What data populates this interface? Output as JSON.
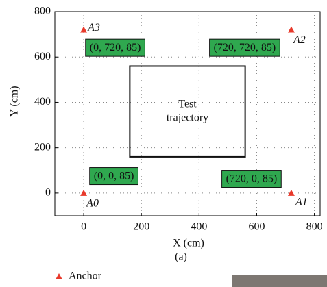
{
  "chart_data": {
    "type": "scatter",
    "xlabel": "X (cm)",
    "ylabel": "Y (cm)",
    "caption": "(a)",
    "xlim": [
      -100,
      820
    ],
    "ylim": [
      -100,
      800
    ],
    "xticks": [
      0,
      200,
      400,
      600,
      800
    ],
    "yticks": [
      0,
      200,
      400,
      600,
      800
    ],
    "grid": true,
    "series": [
      {
        "name": "Anchor",
        "color": "#e8392b",
        "x": [
          0,
          720,
          720,
          0
        ],
        "y": [
          0,
          0,
          720,
          720
        ],
        "point_labels": [
          "A0",
          "A1",
          "A2",
          "A3"
        ],
        "point_notes": [
          "(0, 0, 85)",
          "(720, 0, 85)",
          "(720, 720, 85)",
          "(0, 720, 85)"
        ]
      }
    ],
    "note_color": "#2fa84f",
    "region": {
      "label": [
        "Test",
        "trajectory"
      ],
      "x": [
        160,
        560
      ],
      "y": [
        160,
        560
      ]
    },
    "legend": "bottom-left"
  }
}
